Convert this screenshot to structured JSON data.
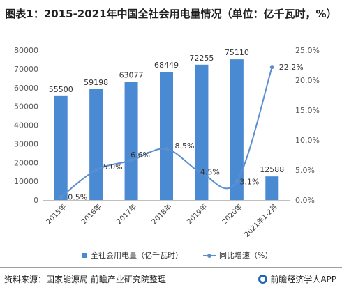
{
  "title": "图表1：2015-2021年中国全社会用电量情况（单位：亿千瓦时，%）",
  "chart_data": {
    "type": "bar+line",
    "categories": [
      "2015年",
      "2016年",
      "2017年",
      "2018年",
      "2019年",
      "2020年",
      "2021年1-2月"
    ],
    "series": [
      {
        "name": "全社会用电量（亿千瓦时）",
        "type": "bar",
        "axis": "left",
        "color": "#4a8ad3",
        "values": [
          55500,
          59198,
          63077,
          68449,
          72255,
          75110,
          12588
        ],
        "labels": [
          "55500",
          "59198",
          "63077",
          "68449",
          "72255",
          "75110",
          "12588"
        ]
      },
      {
        "name": "同比增速（%）",
        "type": "line",
        "axis": "right",
        "color": "#5b8fd0",
        "values": [
          0.5,
          5.0,
          6.6,
          8.5,
          4.5,
          3.1,
          22.2
        ],
        "labels": [
          "0.5%",
          "5.0%",
          "6.6%",
          "8.5%",
          "4.5%",
          "3.1%",
          "22.2%"
        ]
      }
    ],
    "left_axis": {
      "min": 0,
      "max": 80000,
      "step": 10000,
      "ticks": [
        "0",
        "10000",
        "20000",
        "30000",
        "40000",
        "50000",
        "60000",
        "70000",
        "80000"
      ]
    },
    "right_axis": {
      "min": 0,
      "max": 25,
      "step": 5,
      "ticks": [
        "0.0%",
        "5.0%",
        "10.0%",
        "15.0%",
        "20.0%",
        "25.0%"
      ]
    },
    "grid": false,
    "legend_position": "bottom"
  },
  "footer": {
    "source": "资料来源：国家能源局 前瞻产业研究院整理",
    "brand": "前瞻经济学人APP"
  }
}
